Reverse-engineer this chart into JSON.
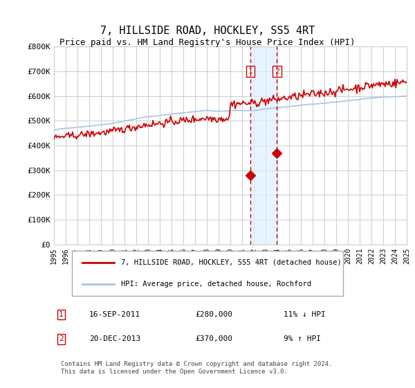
{
  "title": "7, HILLSIDE ROAD, HOCKLEY, SS5 4RT",
  "subtitle": "Price paid vs. HM Land Registry's House Price Index (HPI)",
  "title_fontsize": 11,
  "subtitle_fontsize": 9,
  "hpi_color": "#aac4e0",
  "price_color": "#cc0000",
  "background_color": "#ffffff",
  "grid_color": "#cccccc",
  "ylim": [
    0,
    800000
  ],
  "yticks": [
    0,
    100000,
    200000,
    300000,
    400000,
    500000,
    600000,
    700000,
    800000
  ],
  "ylabel_format": "£{0}K",
  "xlabel_start_year": 1995,
  "xlabel_end_year": 2025,
  "transaction1_date": 2011.71,
  "transaction1_value": 280000,
  "transaction1_label": "1",
  "transaction2_date": 2013.97,
  "transaction2_value": 370000,
  "transaction2_label": "2",
  "legend_price_label": "7, HILLSIDE ROAD, HOCKLEY, SS5 4RT (detached house)",
  "legend_hpi_label": "HPI: Average price, detached house, Rochford",
  "footnote1_label": "1",
  "footnote1_date": "16-SEP-2011",
  "footnote1_price": "£280,000",
  "footnote1_hpi": "11% ↓ HPI",
  "footnote2_label": "2",
  "footnote2_date": "20-DEC-2013",
  "footnote2_price": "£370,000",
  "footnote2_hpi": "9% ↑ HPI",
  "copyright_text": "Contains HM Land Registry data © Crown copyright and database right 2024.\nThis data is licensed under the Open Government Licence v3.0."
}
